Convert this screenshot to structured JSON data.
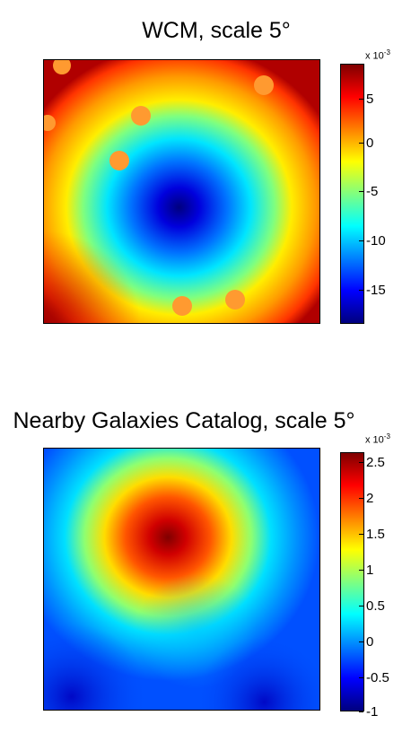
{
  "panels": [
    {
      "title": "WCM, scale 5°",
      "colorbar_multiplier": "x 10",
      "colorbar_exponent": "-3",
      "colorbar_ticks": [
        "5",
        "0",
        "-5",
        "-10",
        "-15"
      ],
      "colormap": "jet"
    },
    {
      "title": "Nearby Galaxies Catalog, scale 5°",
      "colorbar_multiplier": "x 10",
      "colorbar_exponent": "-3",
      "colorbar_ticks": [
        "2.5",
        "2",
        "1.5",
        "1",
        "0.5",
        "0",
        "-0.5",
        "-1"
      ],
      "colormap": "jet"
    }
  ],
  "chart_data": [
    {
      "type": "heatmap",
      "title": "WCM, scale 5°",
      "colorbar": {
        "min": -18.5,
        "max": 8,
        "ticks": [
          5,
          0,
          -5,
          -10,
          -15
        ],
        "multiplier": "x 10^-3"
      },
      "description_values": {
        "center_minimum": -18,
        "corner_maximum": 7
      },
      "masked_patches": 7
    },
    {
      "type": "heatmap",
      "title": "Nearby Galaxies Catalog, scale 5°",
      "colorbar": {
        "min": -1,
        "max": 2.6,
        "ticks": [
          2.5,
          2,
          1.5,
          1,
          0.5,
          0,
          -0.5,
          -1
        ],
        "multiplier": "x 10^-3"
      },
      "description_values": {
        "peak_maximum": 2.5,
        "background_minimum": -1
      }
    }
  ]
}
